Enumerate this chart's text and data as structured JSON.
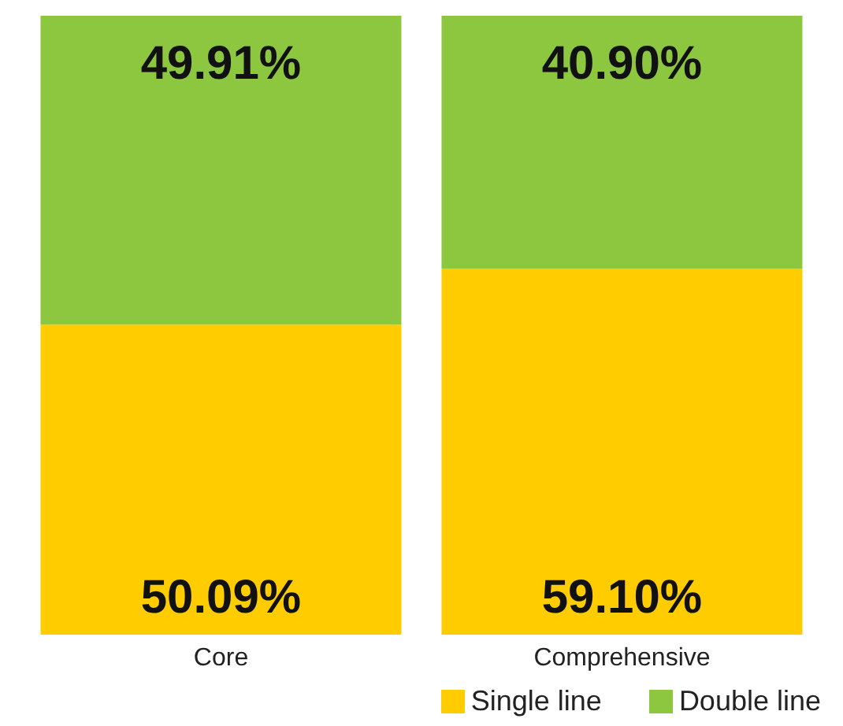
{
  "chart_data": {
    "type": "bar",
    "stacked": true,
    "categories": [
      "Core",
      "Comprehensive"
    ],
    "series": [
      {
        "name": "Single line",
        "color": "#ffcc00",
        "values": [
          50.09,
          59.1
        ],
        "value_labels": [
          "50.09%",
          "59.10%"
        ]
      },
      {
        "name": "Double line",
        "color": "#8dc63f",
        "values": [
          49.91,
          40.9
        ],
        "value_labels": [
          "49.91%",
          "40.90%"
        ]
      }
    ],
    "legend": "bottom right"
  }
}
